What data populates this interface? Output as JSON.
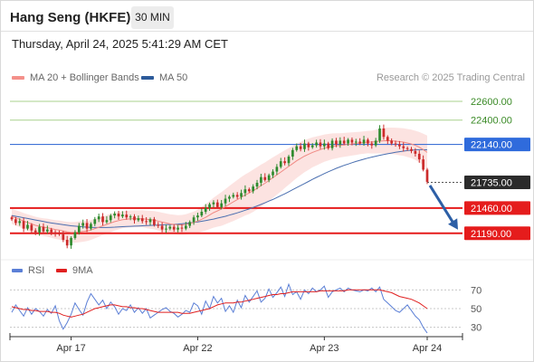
{
  "header": {
    "title": "Hang Seng (HKFE)",
    "timeframe": "30 MIN"
  },
  "datetime": "Thursday, April 24, 2025 5:41:29 AM CET",
  "legend": {
    "ma20_label": "MA 20 + Bollinger Bands",
    "ma20_color": "#f4908a",
    "ma50_label": "MA 50",
    "ma50_color": "#2d5b9a",
    "credit": "Research © 2025 Trading Central"
  },
  "rsi_legend": {
    "rsi_label": "RSI",
    "rsi_color": "#5b7fd6",
    "ma_label": "9MA",
    "ma_color": "#e02020"
  },
  "chart_data": [
    {
      "type": "candlestick",
      "title": "",
      "ylim": [
        20975,
        22755
      ],
      "x_ticks": [
        "Apr 17",
        "Apr 22",
        "Apr 23",
        "Apr 24"
      ],
      "levels": [
        {
          "value": 22600,
          "label": "22600.00",
          "style": "resistance-green"
        },
        {
          "value": 22400,
          "label": "22400.00",
          "style": "resistance-green"
        },
        {
          "value": 22140,
          "label": "22140.00",
          "style": "pivot-blue"
        },
        {
          "value": 21735,
          "label": "21735.00",
          "style": "last-price"
        },
        {
          "value": 21460,
          "label": "21460.00",
          "style": "support-red"
        },
        {
          "value": 21190,
          "label": "21190.00",
          "style": "support-red"
        }
      ],
      "close": [
        21340,
        21300,
        21320,
        21240,
        21280,
        21220,
        21200,
        21260,
        21210,
        21230,
        21200,
        21190,
        21180,
        21120,
        21060,
        21140,
        21200,
        21270,
        21300,
        21240,
        21290,
        21340,
        21370,
        21310,
        21330,
        21380,
        21400,
        21370,
        21390,
        21360,
        21370,
        21330,
        21350,
        21320,
        21310,
        21340,
        21280,
        21270,
        21230,
        21240,
        21260,
        21230,
        21250,
        21240,
        21270,
        21310,
        21360,
        21380,
        21420,
        21460,
        21500,
        21520,
        21470,
        21510,
        21560,
        21580,
        21600,
        21580,
        21620,
        21660,
        21640,
        21690,
        21730,
        21790,
        21760,
        21810,
        21850,
        21900,
        21960,
        21940,
        22010,
        22080,
        22120,
        22090,
        22150,
        22110,
        22130,
        22160,
        22120,
        22150,
        22100,
        22180,
        22140,
        22180,
        22150,
        22190,
        22160,
        22170,
        22150,
        22190,
        22150,
        22130,
        22180,
        22310,
        22220,
        22180,
        22150,
        22140,
        22120,
        22100,
        22090,
        22070,
        22040,
        21980,
        21870,
        21740
      ],
      "ma20": [
        21370,
        21355,
        21340,
        21320,
        21305,
        21290,
        21275,
        21265,
        21255,
        21250,
        21240,
        21230,
        21225,
        21215,
        21205,
        21200,
        21200,
        21205,
        21210,
        21215,
        21225,
        21240,
        21255,
        21270,
        21285,
        21300,
        21315,
        21325,
        21335,
        21340,
        21345,
        21345,
        21345,
        21345,
        21340,
        21335,
        21330,
        21320,
        21310,
        21300,
        21290,
        21285,
        21280,
        21280,
        21285,
        21295,
        21305,
        21320,
        21340,
        21360,
        21385,
        21410,
        21430,
        21450,
        21475,
        21500,
        21525,
        21550,
        21575,
        21600,
        21620,
        21645,
        21670,
        21700,
        21725,
        21755,
        21785,
        21815,
        21845,
        21875,
        21905,
        21935,
        21965,
        21990,
        22015,
        22035,
        22055,
        22070,
        22085,
        22100,
        22110,
        22120,
        22125,
        22130,
        22135,
        22140,
        22145,
        22150,
        22155,
        22160,
        22165,
        22165,
        22170,
        22175,
        22178,
        22180,
        22178,
        22175,
        22170,
        22165,
        22155,
        22145,
        22130,
        22110,
        22085,
        22055
      ],
      "ma50": [
        21380,
        21372,
        21364,
        21356,
        21348,
        21340,
        21332,
        21324,
        21316,
        21308,
        21300,
        21294,
        21288,
        21282,
        21276,
        21270,
        21266,
        21262,
        21258,
        21256,
        21254,
        21252,
        21252,
        21252,
        21252,
        21254,
        21256,
        21258,
        21260,
        21262,
        21264,
        21266,
        21268,
        21270,
        21272,
        21274,
        21276,
        21278,
        21280,
        21282,
        21284,
        21286,
        21288,
        21292,
        21296,
        21300,
        21306,
        21312,
        21318,
        21326,
        21334,
        21342,
        21352,
        21362,
        21372,
        21384,
        21396,
        21408,
        21422,
        21436,
        21450,
        21466,
        21482,
        21498,
        21516,
        21534,
        21552,
        21572,
        21592,
        21612,
        21634,
        21656,
        21678,
        21700,
        21722,
        21744,
        21766,
        21788,
        21808,
        21828,
        21848,
        21866,
        21884,
        21900,
        21916,
        21930,
        21944,
        21958,
        21970,
        21982,
        21994,
        22004,
        22014,
        22024,
        22032,
        22040,
        22048,
        22056,
        22062,
        22068,
        22074,
        22078,
        22082,
        22084,
        22084,
        22082
      ],
      "bollinger_halfwidth": [
        80,
        82,
        84,
        86,
        88,
        90,
        92,
        92,
        94,
        96,
        98,
        100,
        102,
        104,
        108,
        110,
        112,
        112,
        110,
        108,
        106,
        104,
        102,
        100,
        100,
        98,
        96,
        94,
        92,
        90,
        90,
        90,
        90,
        92,
        94,
        96,
        98,
        100,
        100,
        102,
        104,
        104,
        104,
        106,
        108,
        112,
        118,
        124,
        132,
        140,
        150,
        160,
        170,
        180,
        188,
        196,
        204,
        210,
        216,
        220,
        224,
        226,
        226,
        224,
        222,
        220,
        216,
        212,
        208,
        202,
        196,
        190,
        184,
        178,
        172,
        166,
        160,
        156,
        150,
        146,
        142,
        138,
        134,
        130,
        128,
        126,
        124,
        122,
        120,
        120,
        120,
        122,
        126,
        132,
        136,
        140,
        142,
        144,
        146,
        148,
        150,
        152,
        156,
        162,
        170,
        180
      ]
    },
    {
      "type": "line",
      "title": "",
      "ylim": [
        20,
        80
      ],
      "y_ticks": [
        70,
        50,
        30
      ],
      "series": [
        {
          "name": "RSI",
          "values": [
            46,
            54,
            48,
            42,
            51,
            44,
            50,
            47,
            42,
            49,
            45,
            53,
            37,
            28,
            35,
            44,
            56,
            49,
            43,
            57,
            66,
            60,
            54,
            59,
            50,
            57,
            52,
            44,
            50,
            48,
            54,
            46,
            51,
            45,
            50,
            40,
            43,
            46,
            49,
            51,
            47,
            45,
            41,
            44,
            48,
            46,
            56,
            53,
            44,
            58,
            50,
            63,
            56,
            61,
            47,
            53,
            46,
            59,
            51,
            64,
            57,
            63,
            69,
            57,
            61,
            71,
            62,
            67,
            73,
            63,
            76,
            65,
            68,
            60,
            70,
            66,
            72,
            68,
            70,
            74,
            62,
            68,
            70,
            72,
            68,
            72,
            70,
            69,
            68,
            70,
            69,
            72,
            68,
            73,
            60,
            56,
            52,
            48,
            46,
            50,
            54,
            48,
            42,
            38,
            30,
            24
          ]
        },
        {
          "name": "9MA",
          "values": [
            52,
            51,
            50,
            49,
            49,
            48,
            48,
            47,
            47,
            47,
            46,
            46,
            45,
            43,
            42,
            41,
            42,
            43,
            44,
            46,
            48,
            50,
            51,
            52,
            53,
            54,
            54,
            53,
            52,
            52,
            51,
            51,
            50,
            50,
            49,
            48,
            47,
            46,
            46,
            46,
            46,
            46,
            46,
            45,
            45,
            45,
            46,
            47,
            48,
            49,
            50,
            52,
            54,
            55,
            56,
            56,
            56,
            57,
            57,
            58,
            59,
            60,
            61,
            62,
            63,
            64,
            65,
            65,
            66,
            66,
            67,
            68,
            68,
            68,
            68,
            68,
            68,
            68,
            69,
            69,
            69,
            69,
            69,
            69,
            69,
            70,
            70,
            70,
            70,
            70,
            70,
            70,
            70,
            70,
            69,
            68,
            67,
            65,
            63,
            62,
            61,
            60,
            58,
            56,
            53,
            50
          ]
        }
      ]
    }
  ]
}
